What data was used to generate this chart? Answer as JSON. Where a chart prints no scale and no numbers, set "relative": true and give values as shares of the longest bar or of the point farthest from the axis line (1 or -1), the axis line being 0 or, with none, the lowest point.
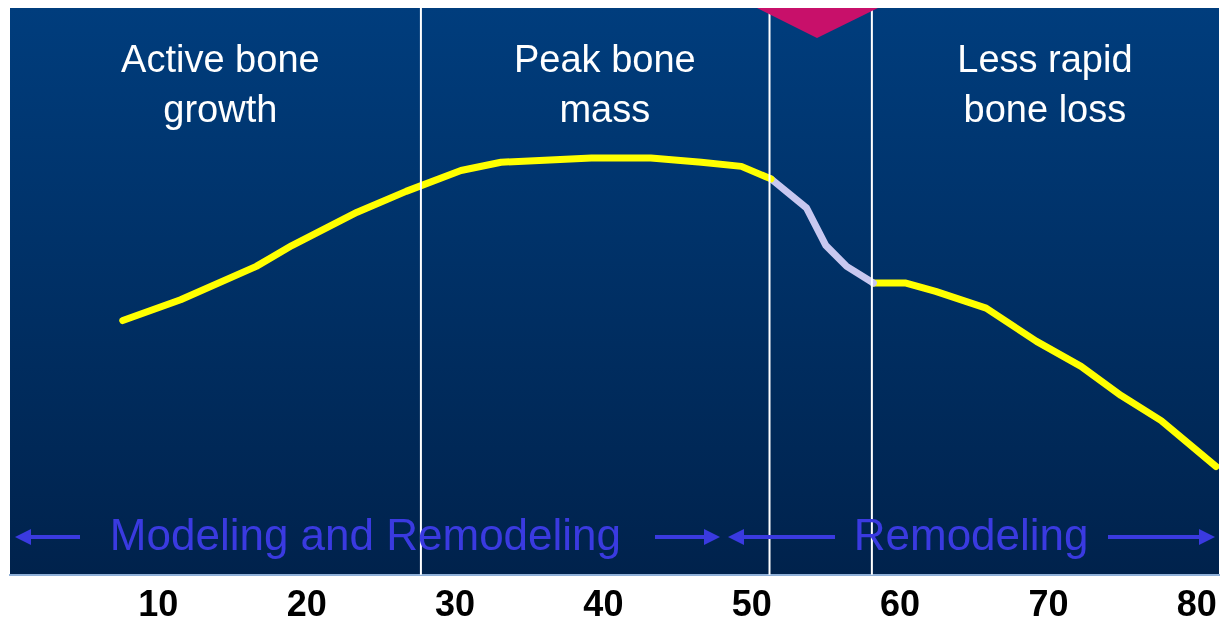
{
  "chart_data": {
    "type": "line",
    "relative": true,
    "xlim": [
      0,
      81.5
    ],
    "xticks": [
      10,
      20,
      30,
      40,
      50,
      60,
      70,
      80
    ],
    "grid": false,
    "legend": false,
    "marker": "none",
    "line_style": "solid",
    "series": [
      {
        "color": "#ffff00",
        "x": [
          7.6,
          11.5,
          16.6,
          19,
          23.4,
          26.7,
          30.4,
          33.1,
          39.2,
          43.2,
          46.6,
          49.3,
          51.3
        ],
        "values": [
          0.61,
          0.66,
          0.74,
          0.79,
          0.87,
          0.92,
          0.97,
          0.99,
          1,
          1,
          0.99,
          0.98,
          0.95
        ]
      },
      {
        "color": "#c8c8f0",
        "x": [
          51.3,
          53.7,
          55,
          56.4,
          58.2
        ],
        "values": [
          0.95,
          0.88,
          0.79,
          0.74,
          0.7
        ]
      },
      {
        "color": "#ffff00",
        "x": [
          58.2,
          60.4,
          62.4,
          65.8,
          69.2,
          72.2,
          74.9,
          77.6,
          81.3
        ],
        "values": [
          0.7,
          0.7,
          0.68,
          0.64,
          0.56,
          0.5,
          0.43,
          0.37,
          0.26
        ]
      }
    ],
    "ref_lines": [
      {
        "axis": "x",
        "value": 27.7,
        "color": "#ffffff"
      },
      {
        "axis": "x",
        "value": 51.2,
        "color": "#ffffff"
      },
      {
        "axis": "x",
        "value": 58.1,
        "color": "#ffffff"
      }
    ],
    "annotations": [
      "Active bone growth",
      "Peak bone mass",
      "Less rapid bone loss",
      "Modeling and Remodeling",
      "Remodeling"
    ]
  }
}
